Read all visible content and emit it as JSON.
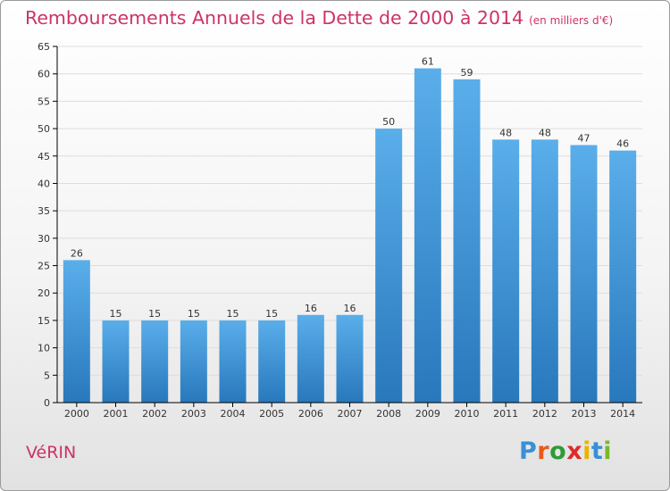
{
  "title": "Remboursements Annuels de la Dette de 2000 à 2014",
  "unit": "(en milliers d'€)",
  "commune": "VéRIN",
  "logo": {
    "text": "Proxiti",
    "letters": [
      {
        "ch": "P",
        "color": "#3a8fd6"
      },
      {
        "ch": "r",
        "color": "#e85a1a"
      },
      {
        "ch": "o",
        "color": "#2f9a3a"
      },
      {
        "ch": "x",
        "color": "#e02a2a"
      },
      {
        "ch": "i",
        "color": "#e8b400"
      },
      {
        "ch": "t",
        "color": "#3a8fd6"
      },
      {
        "ch": "i",
        "color": "#7ab82a"
      }
    ]
  },
  "colors": {
    "bar_top": "#5aaeea",
    "bar_bottom": "#2878bc",
    "title": "#cc3366",
    "grid": "#dddddd",
    "axis": "#000000"
  },
  "chart_data": {
    "type": "bar",
    "title": "Remboursements Annuels de la Dette de 2000 à 2014",
    "subtitle": "(en milliers d'€)",
    "xlabel": "",
    "ylabel": "",
    "categories": [
      "2000",
      "2001",
      "2002",
      "2003",
      "2004",
      "2005",
      "2006",
      "2007",
      "2008",
      "2009",
      "2010",
      "2011",
      "2012",
      "2013",
      "2014"
    ],
    "values": [
      26,
      15,
      15,
      15,
      15,
      15,
      16,
      16,
      50,
      61,
      59,
      48,
      48,
      47,
      46
    ],
    "ylim": [
      0,
      65
    ],
    "yticks": [
      0,
      5,
      10,
      15,
      20,
      25,
      30,
      35,
      40,
      45,
      50,
      55,
      60,
      65
    ],
    "grid": true,
    "data_labels": true
  }
}
